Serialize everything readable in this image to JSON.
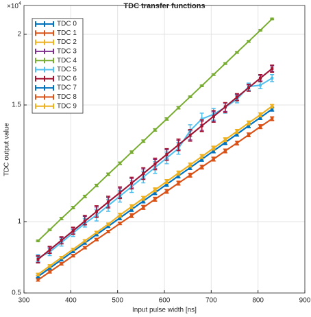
{
  "chart_data": {
    "type": "errorbar-line",
    "title": "TDC transfer functions",
    "x_label": "Input pulse width [ns]",
    "y_label": "TDC output value",
    "y_multiplier_base": "×10",
    "y_multiplier_exponent": "4",
    "x": [
      330,
      355,
      380,
      405,
      430,
      455,
      480,
      505,
      530,
      555,
      580,
      605,
      630,
      655,
      680,
      705,
      730,
      755,
      780,
      805,
      830
    ],
    "xlim": [
      300,
      900
    ],
    "xticks": [
      300,
      400,
      500,
      600,
      700,
      800,
      900
    ],
    "ylim": [
      0.5,
      2.2
    ],
    "yticks": [
      0.5,
      1,
      1.5,
      2
    ],
    "grid": true,
    "legend": "upper left",
    "series": [
      {
        "name": "TDC 0",
        "color": "#0072BD",
        "error": 0.008,
        "values": [
          0.615,
          0.674,
          0.733,
          0.791,
          0.85,
          0.909,
          0.967,
          1.016,
          1.052,
          1.088,
          1.124,
          1.16,
          1.196,
          1.231,
          1.267,
          1.303,
          1.339,
          1.375,
          1.411,
          1.446,
          1.482
        ]
      },
      {
        "name": "TDC 1",
        "color": "#D95319",
        "error": 0.008,
        "values": [
          0.591,
          0.648,
          0.704,
          0.761,
          0.817,
          0.874,
          0.93,
          0.987,
          1.026,
          1.061,
          1.096,
          1.13,
          1.165,
          1.199,
          1.234,
          1.268,
          1.303,
          1.337,
          1.372,
          1.407,
          1.441
        ]
      },
      {
        "name": "TDC 2",
        "color": "#EDB120",
        "error": 0.008,
        "values": [
          0.63,
          0.689,
          0.748,
          0.806,
          0.865,
          0.924,
          0.982,
          1.028,
          1.064,
          1.1,
          1.136,
          1.172,
          1.208,
          1.243,
          1.279,
          1.315,
          1.351,
          1.387,
          1.423,
          1.458,
          1.495
        ]
      },
      {
        "name": "TDC 3",
        "color": "#7E2F8E",
        "error": 0.02,
        "values": [
          0.736,
          0.802,
          0.869,
          0.936,
          1.002,
          1.043,
          1.084,
          1.124,
          1.165,
          1.206,
          1.247,
          1.288,
          1.329,
          1.37,
          1.411,
          1.451,
          1.492,
          1.555,
          1.622,
          1.69,
          1.757
        ]
      },
      {
        "name": "TDC 4",
        "color": "#77AC30",
        "error": 0.005,
        "values": [
          0.865,
          0.943,
          1.013,
          1.06,
          1.108,
          1.155,
          1.203,
          1.25,
          1.298,
          1.345,
          1.393,
          1.44,
          1.488,
          1.558,
          1.636,
          1.715,
          1.793,
          1.872,
          1.95,
          2.028,
          2.107
        ]
      },
      {
        "name": "TDC 5",
        "color": "#4DBEEE",
        "error": 0.025,
        "values": [
          0.745,
          0.787,
          0.854,
          0.921,
          0.987,
          1.028,
          1.069,
          1.109,
          1.15,
          1.191,
          1.232,
          1.273,
          1.314,
          1.39,
          1.44,
          1.46,
          1.49,
          1.54,
          1.63,
          1.64,
          1.69
        ]
      },
      {
        "name": "TDC 6",
        "color": "#A2142F",
        "error": 0.025,
        "values": [
          0.736,
          0.802,
          0.869,
          0.936,
          1.002,
          1.043,
          1.084,
          1.124,
          1.165,
          1.206,
          1.247,
          1.288,
          1.329,
          1.37,
          1.411,
          1.451,
          1.492,
          1.555,
          1.622,
          1.69,
          1.757
        ]
      },
      {
        "name": "TDC 7",
        "color": "#0072BD",
        "error": 0.008,
        "values": [
          0.615,
          0.674,
          0.733,
          0.791,
          0.85,
          0.909,
          0.967,
          1.016,
          1.052,
          1.088,
          1.124,
          1.16,
          1.196,
          1.231,
          1.267,
          1.303,
          1.339,
          1.375,
          1.411,
          1.446,
          1.482
        ]
      },
      {
        "name": "TDC 8",
        "color": "#D95319",
        "error": 0.008,
        "values": [
          0.591,
          0.648,
          0.704,
          0.761,
          0.817,
          0.874,
          0.93,
          0.987,
          1.026,
          1.061,
          1.096,
          1.13,
          1.165,
          1.199,
          1.234,
          1.268,
          1.303,
          1.337,
          1.372,
          1.407,
          1.441
        ]
      },
      {
        "name": "TDC 9",
        "color": "#EDB120",
        "error": 0.008,
        "values": [
          0.63,
          0.689,
          0.748,
          0.806,
          0.865,
          0.924,
          0.982,
          1.028,
          1.064,
          1.1,
          1.136,
          1.172,
          1.208,
          1.243,
          1.279,
          1.315,
          1.351,
          1.387,
          1.423,
          1.458,
          1.495
        ]
      }
    ]
  }
}
